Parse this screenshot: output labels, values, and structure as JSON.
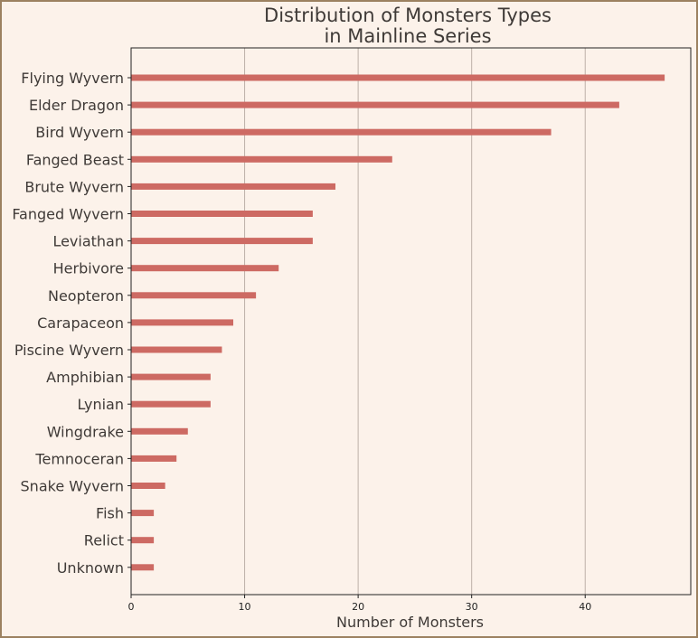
{
  "chart_data": {
    "type": "bar",
    "orientation": "horizontal",
    "title": "Distribution of Monsters Types\nin Mainline Series",
    "xlabel": "Number of Monsters",
    "ylabel": "",
    "xlim": [
      0,
      49.3
    ],
    "xticks": [
      0,
      10,
      20,
      30,
      40
    ],
    "grid": "vertical",
    "categories": [
      "Flying Wyvern",
      "Elder Dragon",
      "Bird Wyvern",
      "Fanged Beast",
      "Brute Wyvern",
      "Fanged Wyvern",
      "Leviathan",
      "Herbivore",
      "Neopteron",
      "Carapaceon",
      "Piscine Wyvern",
      "Amphibian",
      "Lynian",
      "Wingdrake",
      "Temnoceran",
      "Snake Wyvern",
      "Fish",
      "Relict",
      "Unknown"
    ],
    "values": [
      47,
      43,
      37,
      23,
      18,
      16,
      16,
      13,
      11,
      9,
      8,
      7,
      7,
      5,
      4,
      3,
      2,
      2,
      2
    ]
  },
  "colors": {
    "background": "#fcf2ea",
    "bar": "#cd6a63",
    "text": "#3f3a37",
    "grid": "#bdb1a8",
    "axis": "#222222",
    "border": "#9c8160"
  }
}
